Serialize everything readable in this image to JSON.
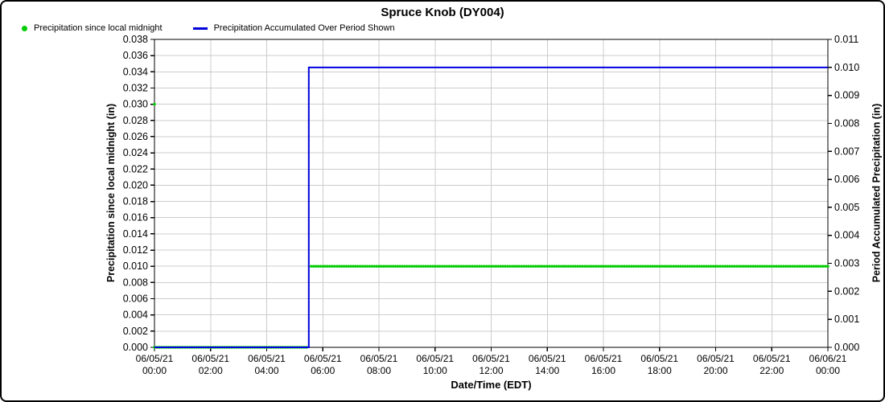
{
  "page": {
    "title": "Spruce Knob (DY004)"
  },
  "legend": [
    {
      "label": "Precipitation since local midnight",
      "marker": "dot-icon",
      "color": "#00CC00"
    },
    {
      "label": "Precipitation Accumulated Over Period Shown",
      "marker": "line-icon",
      "color": "#0000DD"
    }
  ],
  "colors": {
    "green_series": "#00CC00",
    "blue_series": "#0000DD",
    "gridline": "#CCCCCC",
    "axis": "#000000",
    "tick_label": "#000000"
  },
  "chart_data": {
    "type": "line",
    "title": "Spruce Knob (DY004)",
    "xlabel": "Date/Time (EDT)",
    "ylabel_left": "Precipitation since local midnight (in)",
    "ylabel_right": "Period Accumulated Precipitation (in)",
    "grid": true,
    "x_axis": {
      "start": "06/05/21 00:00",
      "end": "06/06/21 00:00",
      "total_minutes": 1440,
      "tick_interval_hours": 2,
      "tick_labels": [
        [
          "06/05/21",
          "00:00"
        ],
        [
          "06/05/21",
          "02:00"
        ],
        [
          "06/05/21",
          "04:00"
        ],
        [
          "06/05/21",
          "06:00"
        ],
        [
          "06/05/21",
          "08:00"
        ],
        [
          "06/05/21",
          "10:00"
        ],
        [
          "06/05/21",
          "12:00"
        ],
        [
          "06/05/21",
          "14:00"
        ],
        [
          "06/05/21",
          "16:00"
        ],
        [
          "06/05/21",
          "18:00"
        ],
        [
          "06/05/21",
          "20:00"
        ],
        [
          "06/05/21",
          "22:00"
        ],
        [
          "06/06/21",
          "00:00"
        ]
      ]
    },
    "y_left": {
      "min": 0.0,
      "max": 0.038,
      "step": 0.002,
      "decimals": 3
    },
    "y_right": {
      "min": 0.0,
      "max": 0.011,
      "step": 0.001,
      "decimals": 3
    },
    "series": [
      {
        "name": "Precipitation since local midnight",
        "axis": "left",
        "style": "dots",
        "color": "#00CC00",
        "sample_interval_min": 5,
        "dot_radius": 1.7,
        "segments": [
          {
            "start_min": 0,
            "end_min": 0,
            "value": 0.03
          },
          {
            "start_min": 0,
            "end_min": 325,
            "value": 0.0
          },
          {
            "start_min": 335,
            "end_min": 1440,
            "value": 0.01
          }
        ]
      },
      {
        "name": "Precipitation Accumulated Over Period Shown",
        "axis": "right",
        "style": "line",
        "color": "#0000DD",
        "line_width": 2,
        "points": [
          {
            "min": 0,
            "value": 0.0
          },
          {
            "min": 330,
            "value": 0.0
          },
          {
            "min": 330,
            "value": 0.01
          },
          {
            "min": 1440,
            "value": 0.01
          }
        ]
      }
    ]
  }
}
